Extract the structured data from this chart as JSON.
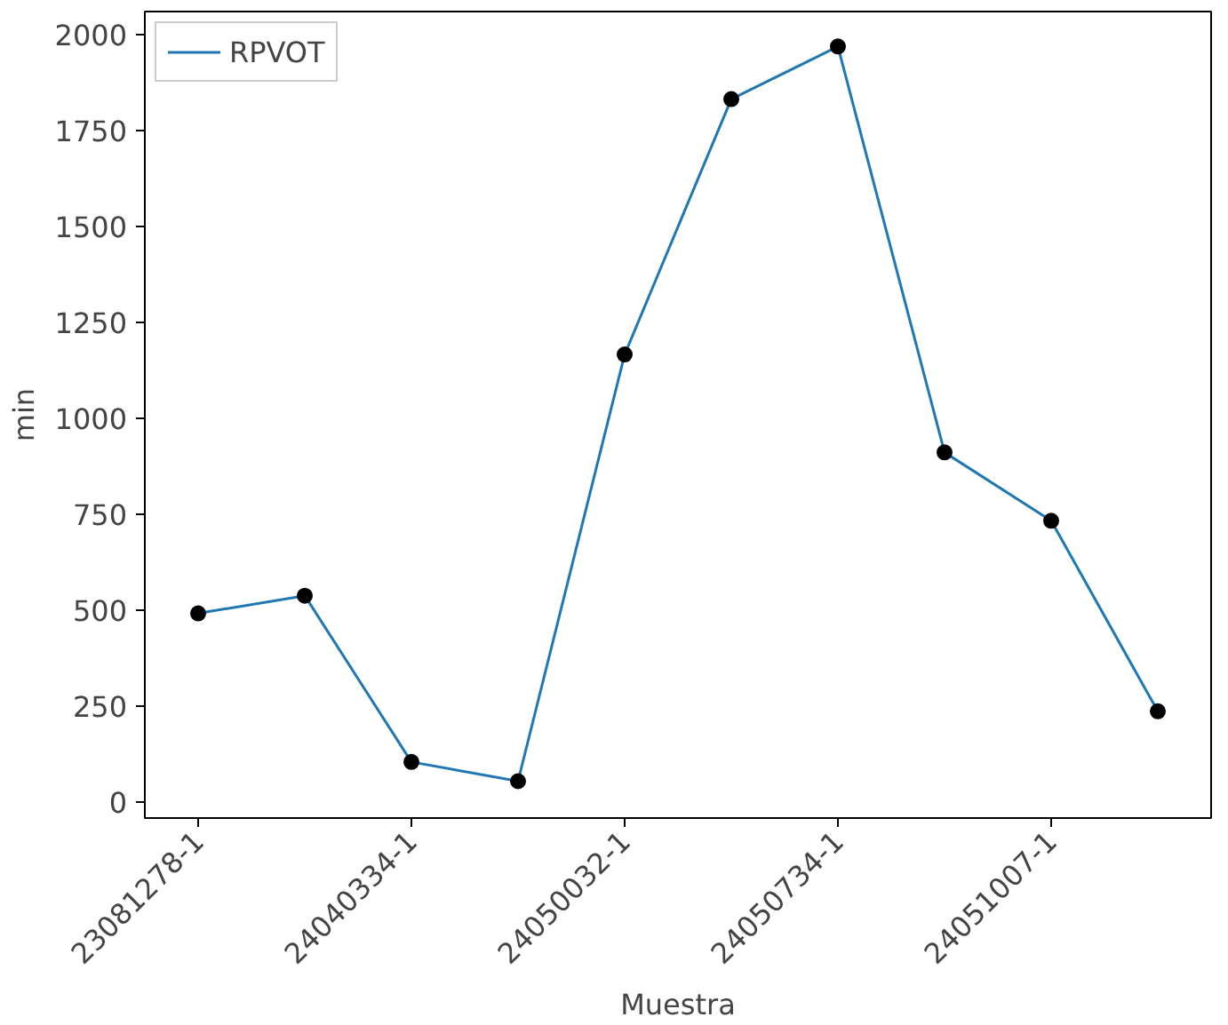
{
  "chart_data": {
    "type": "line",
    "xlabel": "Muestra",
    "ylabel": "min",
    "categories": [
      "23081278-1",
      null,
      "24040334-1",
      null,
      "24050032-1",
      null,
      "24050734-1",
      null,
      "24051007-1",
      null
    ],
    "series": [
      {
        "name": "RPVOT",
        "color": "#1f77b4",
        "marker": "none",
        "values": [
          492,
          538,
          105,
          55,
          1166,
          1831,
          1968,
          911,
          733,
          237
        ]
      },
      {
        "type": "scatter",
        "color": "#000000",
        "marker": "circle",
        "values": [
          492,
          538,
          105,
          55,
          1166,
          1831,
          1968,
          911,
          733,
          237
        ]
      }
    ],
    "ylim": [
      -41,
      2059
    ],
    "yticks": [
      0,
      250,
      500,
      750,
      1000,
      1250,
      1500,
      1750,
      2000
    ],
    "grid": false,
    "legend": "top left"
  }
}
